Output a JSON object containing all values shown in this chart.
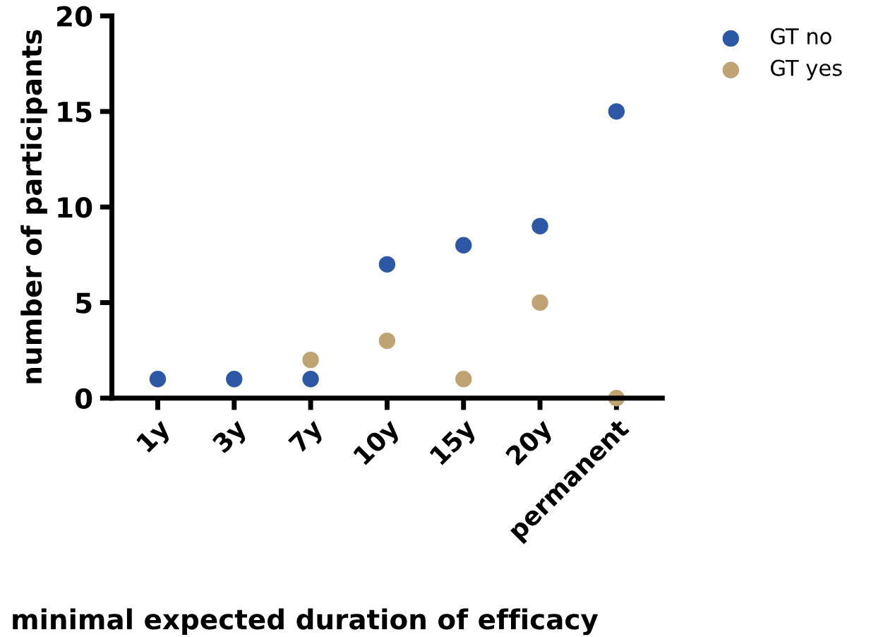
{
  "chart_data": {
    "type": "scatter",
    "xlabel": "minimal expected duration of efficacy",
    "ylabel": "number of participants",
    "categories": [
      "1y",
      "3y",
      "7y",
      "10y",
      "15y",
      "20y",
      "permanent"
    ],
    "series": [
      {
        "name": "GT no",
        "color": "#2c58a6",
        "values": [
          1,
          1,
          1,
          7,
          8,
          9,
          15
        ]
      },
      {
        "name": "GT yes",
        "color": "#bfa372",
        "values": [
          null,
          null,
          2,
          3,
          1,
          5,
          0
        ]
      }
    ],
    "ylim": [
      0,
      20
    ],
    "yticks": [
      0,
      5,
      10,
      15,
      20
    ],
    "grid": false,
    "legend": "top right",
    "marker": "circle"
  }
}
